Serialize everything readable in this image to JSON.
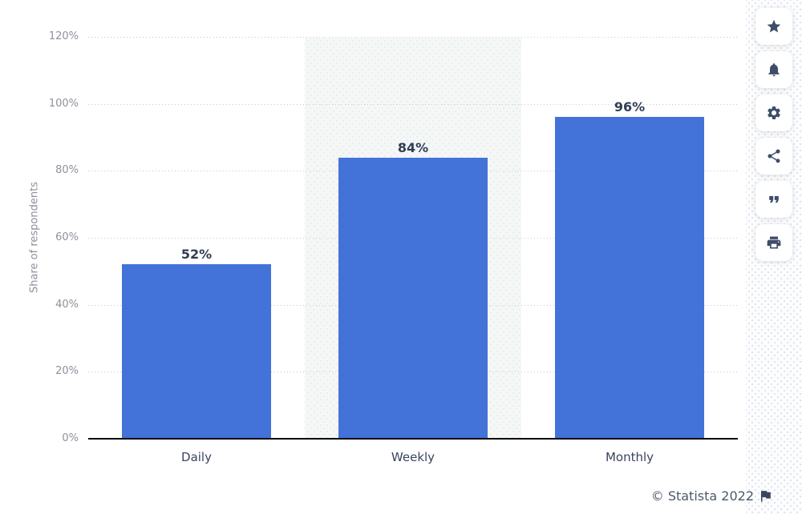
{
  "chart_data": {
    "type": "bar",
    "categories": [
      "Daily",
      "Weekly",
      "Monthly"
    ],
    "values": [
      52,
      84,
      96
    ],
    "value_labels": [
      "52%",
      "84%",
      "96%"
    ],
    "xlabel": "",
    "ylabel": "Share of respondents",
    "ylim": [
      0,
      120
    ],
    "ytick_values": [
      0,
      20,
      40,
      60,
      80,
      100,
      120
    ],
    "ytick_labels": [
      "0%",
      "20%",
      "40%",
      "60%",
      "80%",
      "100%",
      "120%"
    ],
    "grid": "horizontal-dotted",
    "legend": "none",
    "highlighted_category": "Weekly",
    "bar_color": "#4372d8"
  },
  "toolbar": {
    "buttons": [
      {
        "name": "favorite",
        "icon": "star-icon"
      },
      {
        "name": "alerts",
        "icon": "bell-icon"
      },
      {
        "name": "settings",
        "icon": "gear-icon"
      },
      {
        "name": "share",
        "icon": "share-icon"
      },
      {
        "name": "cite",
        "icon": "quote-icon"
      },
      {
        "name": "print",
        "icon": "printer-icon"
      }
    ]
  },
  "footer": {
    "copyright": "© Statista 2022",
    "flag": "flag-icon"
  },
  "colors": {
    "bar": "#4372d8",
    "value_label": "#2f3d55",
    "x_label": "#39455e",
    "y_tick": "#8f909b",
    "grid": "#c9c9ce",
    "axis_line": "#0a0a0a",
    "icon": "#3e4d68",
    "copyright_text": "#4e586b",
    "highlight_band": "#f5f7f7"
  }
}
